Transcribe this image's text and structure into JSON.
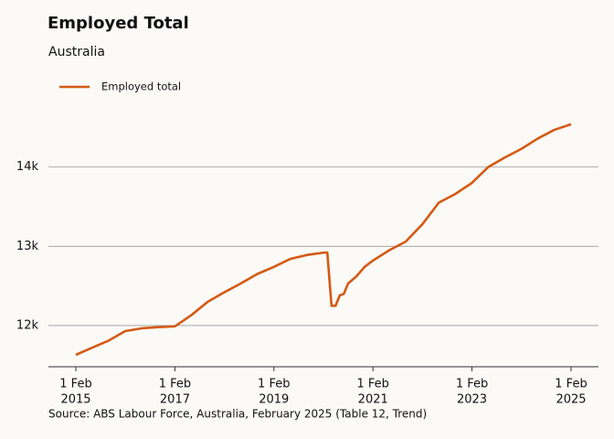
{
  "chart_data": {
    "type": "line",
    "title": "Employed Total",
    "subtitle": "Australia",
    "source": "Source: ABS Labour Force, Australia, February 2025 (Table 12, Trend)",
    "x": [
      "2015-02-01",
      "2015-06-01",
      "2015-10-01",
      "2016-02-01",
      "2016-06-01",
      "2016-10-01",
      "2017-02-01",
      "2017-06-01",
      "2017-10-01",
      "2018-02-01",
      "2018-06-01",
      "2018-10-01",
      "2019-02-01",
      "2019-06-01",
      "2019-10-01",
      "2020-02-01",
      "2020-03-01",
      "2020-04-01",
      "2020-05-01",
      "2020-06-01",
      "2020-07-01",
      "2020-08-01",
      "2020-10-01",
      "2020-12-01",
      "2021-02-01",
      "2021-06-01",
      "2021-10-01",
      "2022-02-01",
      "2022-06-01",
      "2022-10-01",
      "2023-02-01",
      "2023-06-01",
      "2023-10-01",
      "2024-02-01",
      "2024-06-01",
      "2024-10-01",
      "2025-02-01"
    ],
    "series": [
      {
        "name": "Employed total",
        "color": "#d35a14",
        "values": [
          11630,
          11720,
          11810,
          11930,
          11965,
          11980,
          11990,
          12130,
          12300,
          12420,
          12530,
          12650,
          12740,
          12840,
          12890,
          12920,
          12920,
          12250,
          12250,
          12380,
          12400,
          12530,
          12620,
          12740,
          12820,
          12950,
          13060,
          13280,
          13550,
          13660,
          13800,
          14000,
          14120,
          14230,
          14360,
          14470,
          14540
        ]
      }
    ],
    "xlim": [
      "2015-02-01",
      "2025-02-01"
    ],
    "xticks": [
      {
        "value": "2015-02-01",
        "label": [
          "1 Feb",
          "2015"
        ]
      },
      {
        "value": "2017-02-01",
        "label": [
          "1 Feb",
          "2017"
        ]
      },
      {
        "value": "2019-02-01",
        "label": [
          "1 Feb",
          "2019"
        ]
      },
      {
        "value": "2021-02-01",
        "label": [
          "1 Feb",
          "2021"
        ]
      },
      {
        "value": "2023-02-01",
        "label": [
          "1 Feb",
          "2023"
        ]
      },
      {
        "value": "2025-02-01",
        "label": [
          "1 Feb",
          "2025"
        ]
      }
    ],
    "ylim": [
      11480,
      14700
    ],
    "yticks": [
      {
        "value": 12000,
        "label": "12k"
      },
      {
        "value": 13000,
        "label": "13k"
      },
      {
        "value": 14000,
        "label": "14k"
      }
    ],
    "grid": true
  }
}
